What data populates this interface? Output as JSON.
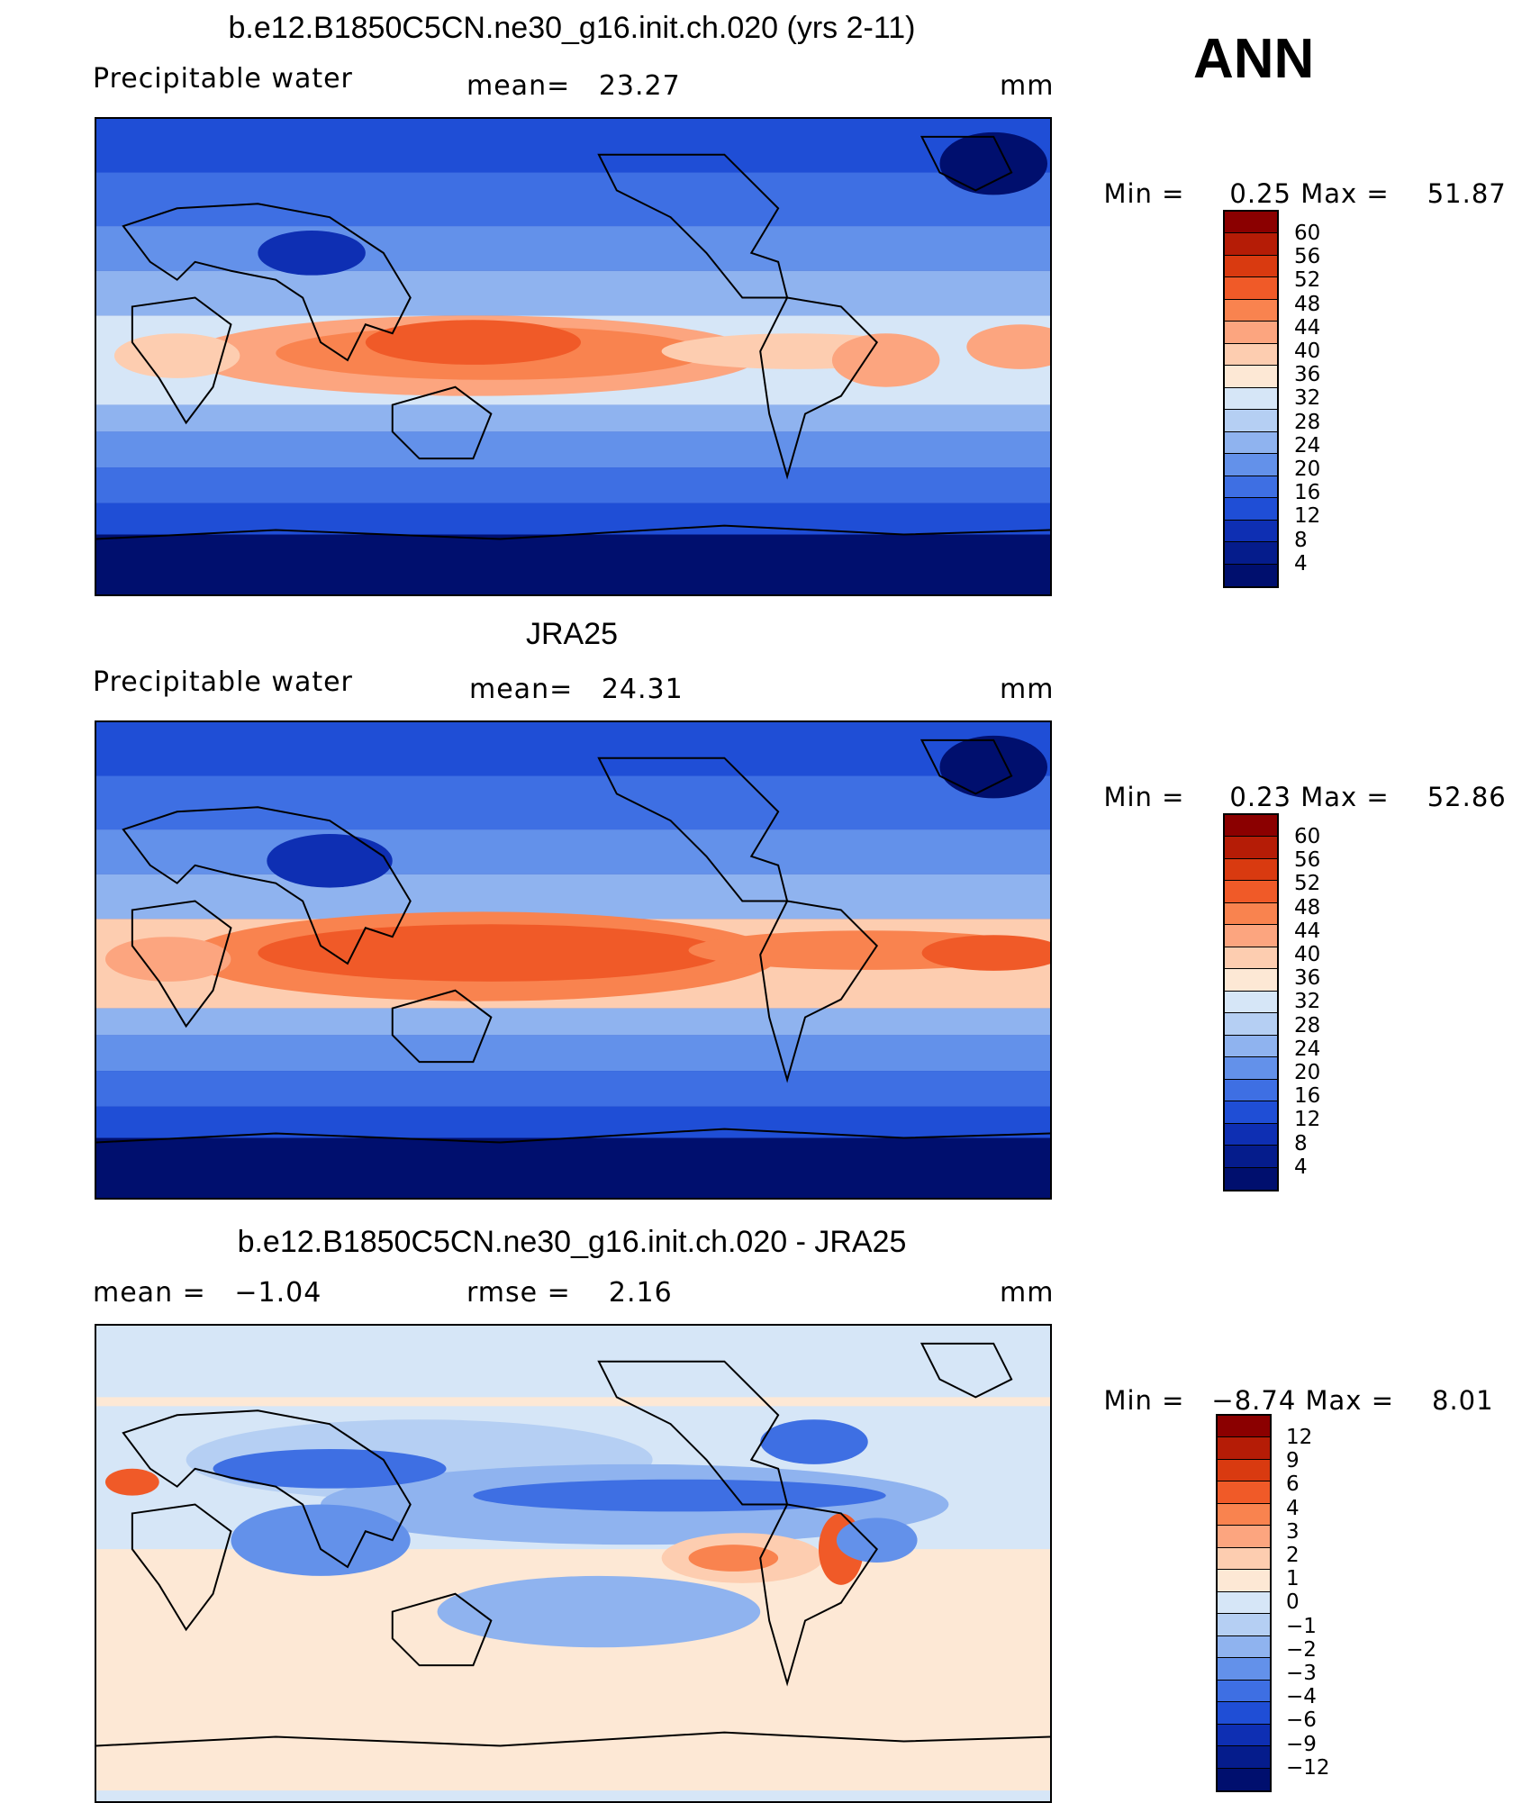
{
  "season": "ANN",
  "panels": [
    {
      "id": "model",
      "title": "b.e12.B1850C5CN.ne30_g16.init.ch.020 (yrs 2-11)",
      "left_label": "Precipitable water",
      "center_label": "mean=   23.27",
      "units": "mm",
      "min_label": "Min =",
      "min_value": "0.25",
      "max_label": "Max =",
      "max_value": "51.87",
      "colorbar_ticks": [
        "60",
        "56",
        "52",
        "48",
        "44",
        "40",
        "36",
        "32",
        "28",
        "24",
        "20",
        "16",
        "12",
        "8",
        "4"
      ]
    },
    {
      "id": "obs",
      "title": "JRA25",
      "left_label": "Precipitable water",
      "center_label": "mean=   24.31",
      "units": "mm",
      "min_label": "Min =",
      "min_value": "0.23",
      "max_label": "Max =",
      "max_value": "52.86",
      "colorbar_ticks": [
        "60",
        "56",
        "52",
        "48",
        "44",
        "40",
        "36",
        "32",
        "28",
        "24",
        "20",
        "16",
        "12",
        "8",
        "4"
      ]
    },
    {
      "id": "diff",
      "title": "b.e12.B1850C5CN.ne30_g16.init.ch.020 - JRA25",
      "left_label": "mean =   −1.04",
      "center_label": "rmse =    2.16",
      "units": "mm",
      "min_label": "Min =",
      "min_value": "−8.74",
      "max_label": "Max =",
      "max_value": "8.01",
      "colorbar_ticks": [
        "12",
        "9",
        "6",
        "4",
        "3",
        "2",
        "1",
        "0",
        "−1",
        "−2",
        "−3",
        "−4",
        "−6",
        "−9",
        "−12"
      ]
    }
  ],
  "colors": {
    "field_scale": [
      "#8b0000",
      "#b51c06",
      "#d93a10",
      "#f05a28",
      "#f9834f",
      "#fca57f",
      "#fdcdb0",
      "#fde8d5",
      "#d6e6f7",
      "#b5cff3",
      "#8fb3ef",
      "#6391ea",
      "#3e6fe3",
      "#1f4ed6",
      "#0e2fb3",
      "#051c8c",
      "#000f6e"
    ],
    "diff_scale": [
      "#8b0000",
      "#b51c06",
      "#d93a10",
      "#f05a28",
      "#f9834f",
      "#fca57f",
      "#fdcdb0",
      "#fde8d5",
      "#d6e6f7",
      "#b5cff3",
      "#8fb3ef",
      "#6391ea",
      "#3e6fe3",
      "#1f4ed6",
      "#0e2fb3",
      "#051c8c",
      "#000f6e"
    ],
    "coastline": "#000000"
  }
}
